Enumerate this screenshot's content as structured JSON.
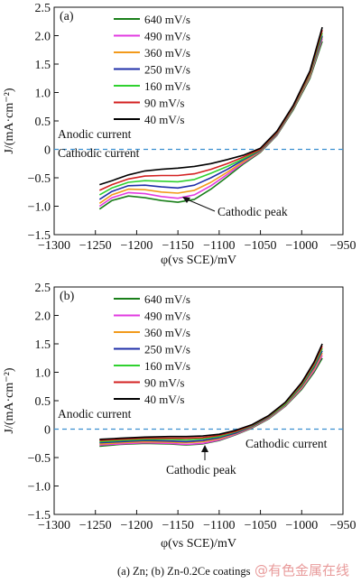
{
  "colors": {
    "640 mV/s": "#1a7f1a",
    "490 mV/s": "#e23be0",
    "360 mV/s": "#f29a1b",
    "250 mV/s": "#1f2fa8",
    "160 mV/s": "#2fd12f",
    "90 mV/s": "#d32020",
    "40 mV/s": "#000000",
    "zero_line": "#3a8fd0"
  },
  "chart_data": [
    {
      "panel": "(a)",
      "type": "line",
      "xlabel": "φ(vs SCE)/mV",
      "ylabel": "J/(mA·cm⁻²)",
      "xlim": [
        -1300,
        -950
      ],
      "ylim": [
        -1.5,
        2.5
      ],
      "x_ticks": [
        -1300,
        -1250,
        -1200,
        -1150,
        -1100,
        -1050,
        -1000,
        -950
      ],
      "y_ticks": [
        -1.5,
        -1.0,
        -0.5,
        0,
        0.5,
        1.0,
        1.5,
        2.0,
        2.5
      ],
      "legend_position": "top-left",
      "annotations": [
        "Anodic current",
        "Cathodic current",
        "Cathodic peak"
      ],
      "series": [
        {
          "name": "640 mV/s",
          "x": [
            -1245,
            -1230,
            -1210,
            -1190,
            -1170,
            -1150,
            -1130,
            -1110,
            -1090,
            -1070,
            -1050,
            -1030,
            -1010,
            -990,
            -975
          ],
          "y": [
            -1.05,
            -0.9,
            -0.82,
            -0.85,
            -0.9,
            -0.93,
            -0.88,
            -0.7,
            -0.48,
            -0.25,
            -0.05,
            0.25,
            0.7,
            1.25,
            1.9
          ]
        },
        {
          "name": "490 mV/s",
          "x": [
            -1245,
            -1230,
            -1210,
            -1190,
            -1170,
            -1150,
            -1130,
            -1110,
            -1090,
            -1070,
            -1050,
            -1030,
            -1010,
            -990,
            -975
          ],
          "y": [
            -1.0,
            -0.85,
            -0.76,
            -0.78,
            -0.83,
            -0.86,
            -0.8,
            -0.64,
            -0.44,
            -0.23,
            -0.04,
            0.26,
            0.72,
            1.28,
            1.95
          ]
        },
        {
          "name": "360 mV/s",
          "x": [
            -1245,
            -1230,
            -1210,
            -1190,
            -1170,
            -1150,
            -1130,
            -1110,
            -1090,
            -1070,
            -1050,
            -1030,
            -1010,
            -990,
            -975
          ],
          "y": [
            -0.95,
            -0.8,
            -0.7,
            -0.71,
            -0.75,
            -0.77,
            -0.72,
            -0.58,
            -0.4,
            -0.21,
            -0.03,
            0.27,
            0.73,
            1.3,
            1.98
          ]
        },
        {
          "name": "250 mV/s",
          "x": [
            -1245,
            -1230,
            -1210,
            -1190,
            -1170,
            -1150,
            -1130,
            -1110,
            -1090,
            -1070,
            -1050,
            -1030,
            -1010,
            -990,
            -975
          ],
          "y": [
            -0.88,
            -0.74,
            -0.64,
            -0.63,
            -0.66,
            -0.68,
            -0.63,
            -0.5,
            -0.35,
            -0.18,
            -0.02,
            0.28,
            0.74,
            1.32,
            2.0
          ]
        },
        {
          "name": "160 mV/s",
          "x": [
            -1245,
            -1230,
            -1210,
            -1190,
            -1170,
            -1150,
            -1130,
            -1110,
            -1090,
            -1070,
            -1050,
            -1030,
            -1010,
            -990,
            -975
          ],
          "y": [
            -0.8,
            -0.68,
            -0.58,
            -0.55,
            -0.56,
            -0.57,
            -0.53,
            -0.42,
            -0.3,
            -0.16,
            -0.01,
            0.29,
            0.75,
            1.33,
            2.05
          ]
        },
        {
          "name": "90 mV/s",
          "x": [
            -1245,
            -1230,
            -1210,
            -1190,
            -1170,
            -1150,
            -1130,
            -1110,
            -1090,
            -1070,
            -1050,
            -1030,
            -1010,
            -990,
            -975
          ],
          "y": [
            -0.72,
            -0.62,
            -0.52,
            -0.47,
            -0.46,
            -0.46,
            -0.43,
            -0.35,
            -0.25,
            -0.13,
            0.0,
            0.3,
            0.76,
            1.35,
            2.1
          ]
        },
        {
          "name": "40 mV/s",
          "x": [
            -1245,
            -1230,
            -1210,
            -1190,
            -1170,
            -1150,
            -1130,
            -1110,
            -1090,
            -1070,
            -1050,
            -1030,
            -1010,
            -990,
            -975
          ],
          "y": [
            -0.62,
            -0.55,
            -0.45,
            -0.38,
            -0.35,
            -0.33,
            -0.3,
            -0.25,
            -0.18,
            -0.1,
            0.02,
            0.32,
            0.78,
            1.38,
            2.15
          ]
        }
      ]
    },
    {
      "panel": "(b)",
      "type": "line",
      "xlabel": "φ(vs SCE)/mV",
      "ylabel": "J/(mA·cm⁻²)",
      "xlim": [
        -1300,
        -950
      ],
      "ylim": [
        -1.5,
        2.5
      ],
      "x_ticks": [
        -1300,
        -1250,
        -1200,
        -1150,
        -1100,
        -1050,
        -1000,
        -950
      ],
      "y_ticks": [
        -1.5,
        -1.0,
        -0.5,
        0,
        0.5,
        1.0,
        1.5,
        2.0,
        2.5
      ],
      "legend_position": "top-left",
      "annotations": [
        "Anodic current",
        "Cathodic current",
        "Cathodic peak"
      ],
      "series": [
        {
          "name": "640 mV/s",
          "x": [
            -1245,
            -1220,
            -1190,
            -1160,
            -1140,
            -1120,
            -1100,
            -1080,
            -1060,
            -1040,
            -1020,
            -1000,
            -985,
            -975
          ],
          "y": [
            -0.3,
            -0.27,
            -0.25,
            -0.26,
            -0.28,
            -0.26,
            -0.2,
            -0.1,
            0.02,
            0.18,
            0.4,
            0.7,
            1.0,
            1.25
          ]
        },
        {
          "name": "490 mV/s",
          "x": [
            -1245,
            -1220,
            -1190,
            -1160,
            -1140,
            -1120,
            -1100,
            -1080,
            -1060,
            -1040,
            -1020,
            -1000,
            -985,
            -975
          ],
          "y": [
            -0.28,
            -0.26,
            -0.24,
            -0.25,
            -0.27,
            -0.25,
            -0.19,
            -0.09,
            0.03,
            0.19,
            0.41,
            0.72,
            1.03,
            1.3
          ]
        },
        {
          "name": "360 mV/s",
          "x": [
            -1245,
            -1220,
            -1190,
            -1160,
            -1140,
            -1120,
            -1100,
            -1080,
            -1060,
            -1040,
            -1020,
            -1000,
            -985,
            -975
          ],
          "y": [
            -0.26,
            -0.24,
            -0.22,
            -0.23,
            -0.24,
            -0.22,
            -0.17,
            -0.08,
            0.04,
            0.2,
            0.42,
            0.74,
            1.06,
            1.34
          ]
        },
        {
          "name": "250 mV/s",
          "x": [
            -1245,
            -1220,
            -1190,
            -1160,
            -1140,
            -1120,
            -1100,
            -1080,
            -1060,
            -1040,
            -1020,
            -1000,
            -985,
            -975
          ],
          "y": [
            -0.24,
            -0.22,
            -0.2,
            -0.21,
            -0.22,
            -0.2,
            -0.15,
            -0.07,
            0.05,
            0.21,
            0.43,
            0.76,
            1.09,
            1.38
          ]
        },
        {
          "name": "160 mV/s",
          "x": [
            -1245,
            -1220,
            -1190,
            -1160,
            -1140,
            -1120,
            -1100,
            -1080,
            -1060,
            -1040,
            -1020,
            -1000,
            -985,
            -975
          ],
          "y": [
            -0.22,
            -0.2,
            -0.18,
            -0.18,
            -0.19,
            -0.17,
            -0.13,
            -0.05,
            0.06,
            0.22,
            0.44,
            0.78,
            1.12,
            1.42
          ]
        },
        {
          "name": "90 mV/s",
          "x": [
            -1245,
            -1220,
            -1190,
            -1160,
            -1140,
            -1120,
            -1100,
            -1080,
            -1060,
            -1040,
            -1020,
            -1000,
            -985,
            -975
          ],
          "y": [
            -0.2,
            -0.18,
            -0.16,
            -0.16,
            -0.16,
            -0.15,
            -0.11,
            -0.04,
            0.07,
            0.23,
            0.46,
            0.8,
            1.15,
            1.46
          ]
        },
        {
          "name": "40 mV/s",
          "x": [
            -1245,
            -1220,
            -1190,
            -1160,
            -1140,
            -1120,
            -1100,
            -1080,
            -1060,
            -1040,
            -1020,
            -1000,
            -985,
            -975
          ],
          "y": [
            -0.18,
            -0.16,
            -0.14,
            -0.13,
            -0.13,
            -0.12,
            -0.09,
            -0.02,
            0.08,
            0.24,
            0.47,
            0.82,
            1.18,
            1.5
          ]
        }
      ]
    }
  ],
  "caption": "(a) Zn; (b) Zn-0.2Ce coatings",
  "watermark": "@有色金属在线"
}
